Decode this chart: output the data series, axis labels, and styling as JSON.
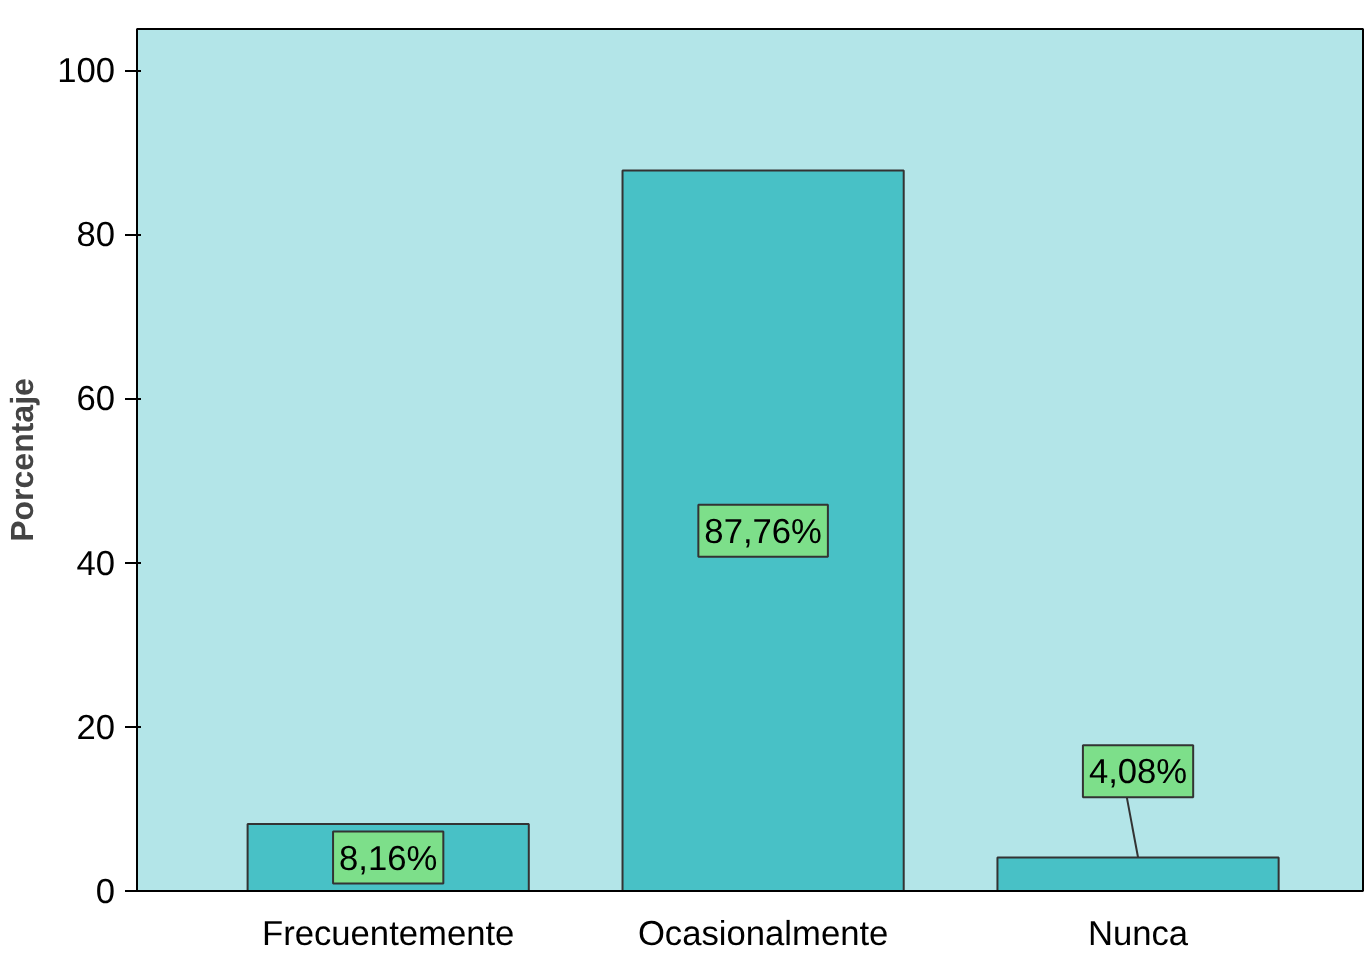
{
  "chart_data": {
    "type": "bar",
    "ylabel": "Porcentaje",
    "categories": [
      "Frecuentemente",
      "Ocasionalmente",
      "Nunca"
    ],
    "values": [
      8.16,
      87.76,
      4.08
    ],
    "value_labels": [
      "8,16%",
      "87,76%",
      "4,08%"
    ],
    "color": "#48c1c6",
    "ylim": [
      0,
      105
    ],
    "yticks": [
      0,
      20,
      40,
      60,
      80,
      100
    ],
    "grid": false
  }
}
